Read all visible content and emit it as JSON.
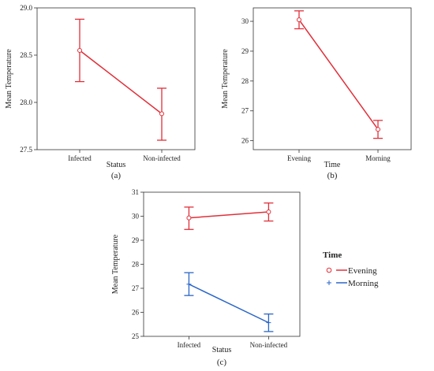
{
  "chart_data": [
    {
      "id": "a",
      "type": "line",
      "panel_label": "(a)",
      "xlabel": "Status",
      "ylabel": "Mean Temperature",
      "categories": [
        "Infected",
        "Non-infected"
      ],
      "ylim": [
        27.5,
        29.0
      ],
      "yticks": [
        "27.5",
        "28.0",
        "28.5",
        "29.0"
      ],
      "grid": false,
      "series": [
        {
          "color": "#e0303a",
          "marker": "circle",
          "values": [
            28.55,
            27.88
          ],
          "err_low": [
            28.22,
            27.6
          ],
          "err_high": [
            28.88,
            28.15
          ]
        }
      ]
    },
    {
      "id": "b",
      "type": "line",
      "panel_label": "(b)",
      "xlabel": "Time",
      "ylabel": "Mean Temperature",
      "categories": [
        "Evening",
        "Morning"
      ],
      "ylim": [
        25.7,
        30.45
      ],
      "yticks": [
        "26",
        "27",
        "28",
        "29",
        "30"
      ],
      "grid": false,
      "series": [
        {
          "color": "#e0303a",
          "marker": "circle",
          "values": [
            30.05,
            26.38
          ],
          "err_low": [
            29.75,
            26.08
          ],
          "err_high": [
            30.35,
            26.68
          ]
        }
      ]
    },
    {
      "id": "c",
      "type": "line",
      "panel_label": "(c)",
      "xlabel": "Status",
      "ylabel": "Mean Temperature",
      "categories": [
        "Infected",
        "Non-infected"
      ],
      "ylim": [
        25,
        31
      ],
      "yticks": [
        "25",
        "26",
        "27",
        "28",
        "29",
        "30",
        "31"
      ],
      "grid": false,
      "legend": {
        "title": "Time",
        "placement": "right"
      },
      "series": [
        {
          "name": "Evening",
          "color": "#e0303a",
          "marker": "circle",
          "values": [
            29.93,
            30.18
          ],
          "err_low": [
            29.45,
            29.8
          ],
          "err_high": [
            30.38,
            30.55
          ]
        },
        {
          "name": "Morning",
          "color": "#2a66c8",
          "marker": "plus",
          "values": [
            27.17,
            25.57
          ],
          "err_low": [
            26.7,
            25.2
          ],
          "err_high": [
            27.65,
            25.93
          ]
        }
      ]
    }
  ]
}
